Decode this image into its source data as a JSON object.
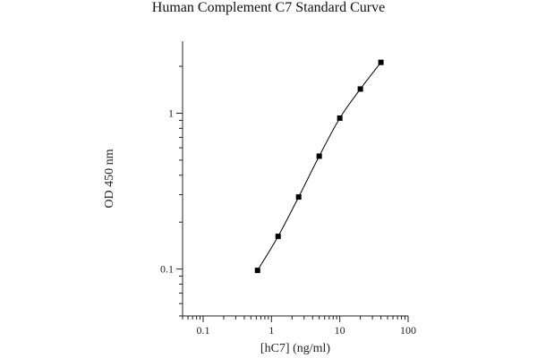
{
  "chart_data": {
    "type": "scatter",
    "title": "Human Complement C7 Standard Curve",
    "xlabel": "[hC7] (ng/ml)",
    "ylabel": "OD 450 nm",
    "x_scale": "log",
    "y_scale": "log",
    "xlim": [
      0.05,
      100
    ],
    "ylim": [
      0.05,
      2.9
    ],
    "x_ticks": [
      0.1,
      1,
      10,
      100
    ],
    "x_tick_labels": [
      "0.1",
      "1",
      "10",
      "100"
    ],
    "y_ticks": [
      0.1,
      1
    ],
    "y_tick_labels": [
      "0.1",
      "1"
    ],
    "grid": false,
    "legend": "none",
    "series": [
      {
        "x": [
          0.625,
          1.25,
          2.5,
          5,
          10,
          20,
          40
        ],
        "y": [
          0.098,
          0.162,
          0.29,
          0.53,
          0.93,
          1.43,
          2.12
        ],
        "fit_line": true,
        "marker": "square",
        "color": "#000000"
      }
    ]
  }
}
